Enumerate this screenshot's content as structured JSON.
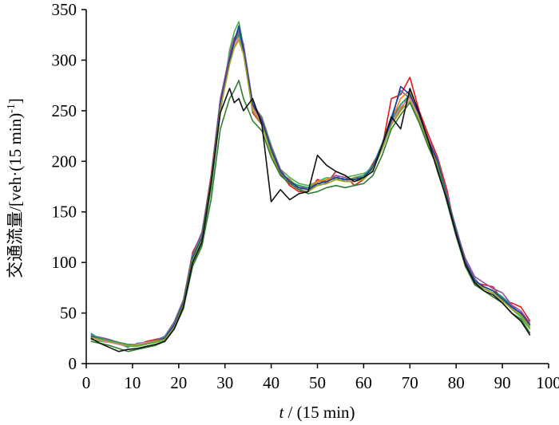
{
  "chart_data": {
    "type": "line",
    "title": "",
    "xlabel_var": "t",
    "xlabel_unit": " / (15 min)",
    "ylabel_main": "交通流量/[veh·(15 min)",
    "ylabel_sup": "-1",
    "ylabel_close": "]",
    "xlim": [
      0,
      100
    ],
    "ylim": [
      0,
      350
    ],
    "x_ticks": [
      0,
      10,
      20,
      30,
      40,
      50,
      60,
      70,
      80,
      90,
      100
    ],
    "y_ticks": [
      0,
      50,
      100,
      150,
      200,
      250,
      300,
      350
    ],
    "x_tick_labels": [
      "0",
      "10",
      "20",
      "30",
      "40",
      "50",
      "60",
      "70",
      "80",
      "90",
      "100"
    ],
    "y_tick_labels": [
      "0",
      "50",
      "100",
      "150",
      "200",
      "250",
      "300",
      "350"
    ],
    "grid": false,
    "legend": "none",
    "base_profile": {
      "x": [
        1,
        3,
        5,
        7,
        9,
        11,
        13,
        15,
        17,
        19,
        21,
        23,
        25,
        27,
        29,
        31,
        32,
        33,
        34,
        36,
        38,
        40,
        42,
        44,
        46,
        48,
        50,
        52,
        54,
        56,
        58,
        60,
        62,
        64,
        66,
        68,
        70,
        72,
        74,
        76,
        78,
        80,
        82,
        84,
        86,
        88,
        90,
        92,
        94,
        96
      ],
      "y": [
        27,
        24,
        22,
        20,
        18,
        18,
        20,
        22,
        25,
        38,
        60,
        105,
        125,
        180,
        255,
        300,
        318,
        325,
        310,
        255,
        240,
        212,
        190,
        180,
        175,
        173,
        178,
        180,
        184,
        182,
        182,
        185,
        195,
        215,
        240,
        255,
        265,
        245,
        220,
        200,
        165,
        130,
        100,
        82,
        76,
        72,
        65,
        56,
        50,
        38
      ]
    },
    "series": [
      {
        "color": "#e41a1c",
        "values": [
          25,
          25,
          23,
          21,
          18,
          18,
          22,
          24,
          26,
          40,
          62,
          110,
          128,
          186,
          260,
          306,
          322,
          328,
          312,
          248,
          236,
          214,
          188,
          176,
          170,
          170,
          182,
          178,
          190,
          186,
          176,
          182,
          198,
          214,
          262,
          266,
          283,
          250,
          226,
          204,
          172,
          128,
          96,
          80,
          78,
          76,
          62,
          60,
          56,
          42
        ]
      },
      {
        "color": "#377eb8",
        "values": [
          30,
          24,
          22,
          20,
          16,
          20,
          21,
          23,
          24,
          36,
          58,
          102,
          124,
          176,
          258,
          302,
          320,
          330,
          308,
          252,
          238,
          208,
          186,
          182,
          172,
          174,
          176,
          182,
          186,
          180,
          184,
          186,
          196,
          218,
          244,
          270,
          262,
          244,
          222,
          198,
          166,
          134,
          102,
          84,
          74,
          70,
          66,
          58,
          48,
          36
        ]
      },
      {
        "color": "#4daf4a",
        "values": [
          24,
          22,
          21,
          19,
          17,
          17,
          19,
          21,
          23,
          34,
          56,
          98,
          118,
          172,
          248,
          310,
          328,
          338,
          314,
          256,
          244,
          216,
          192,
          184,
          178,
          176,
          180,
          184,
          182,
          184,
          186,
          188,
          192,
          212,
          238,
          250,
          268,
          242,
          218,
          196,
          160,
          126,
          98,
          80,
          74,
          70,
          64,
          54,
          46,
          34
        ]
      },
      {
        "color": "#984ea3",
        "values": [
          28,
          26,
          24,
          21,
          19,
          19,
          21,
          23,
          27,
          41,
          63,
          108,
          130,
          184,
          262,
          304,
          322,
          326,
          316,
          258,
          242,
          214,
          192,
          178,
          176,
          172,
          178,
          180,
          186,
          184,
          180,
          184,
          196,
          216,
          242,
          256,
          266,
          246,
          222,
          202,
          168,
          132,
          104,
          86,
          80,
          74,
          70,
          58,
          52,
          40
        ]
      },
      {
        "color": "#ff7f00",
        "values": [
          26,
          24,
          22,
          20,
          18,
          18,
          20,
          22,
          25,
          39,
          61,
          104,
          124,
          180,
          252,
          296,
          314,
          320,
          306,
          254,
          240,
          212,
          190,
          180,
          176,
          174,
          180,
          182,
          184,
          182,
          182,
          186,
          194,
          214,
          240,
          262,
          270,
          248,
          220,
          200,
          164,
          130,
          100,
          82,
          76,
          72,
          64,
          56,
          50,
          38
        ]
      },
      {
        "color": "#a6761d",
        "values": [
          27,
          25,
          23,
          21,
          19,
          18,
          20,
          23,
          25,
          38,
          60,
          106,
          126,
          182,
          256,
          300,
          316,
          324,
          310,
          256,
          238,
          210,
          188,
          182,
          174,
          172,
          176,
          178,
          182,
          180,
          184,
          184,
          194,
          216,
          238,
          252,
          264,
          244,
          220,
          198,
          166,
          130,
          100,
          82,
          76,
          72,
          66,
          56,
          50,
          38
        ]
      },
      {
        "color": "#f781bf",
        "values": [
          26,
          23,
          21,
          19,
          18,
          19,
          21,
          22,
          24,
          37,
          59,
          104,
          126,
          178,
          254,
          298,
          316,
          322,
          308,
          252,
          238,
          212,
          190,
          180,
          174,
          172,
          178,
          180,
          184,
          182,
          180,
          184,
          194,
          214,
          238,
          254,
          262,
          244,
          220,
          200,
          164,
          128,
          100,
          82,
          76,
          72,
          64,
          56,
          48,
          36
        ]
      },
      {
        "color": "#1b9e77",
        "values": [
          29,
          25,
          23,
          21,
          19,
          18,
          20,
          22,
          26,
          39,
          61,
          106,
          126,
          180,
          256,
          300,
          318,
          326,
          310,
          256,
          240,
          212,
          190,
          180,
          176,
          174,
          178,
          180,
          184,
          182,
          182,
          186,
          196,
          216,
          240,
          256,
          266,
          246,
          220,
          200,
          166,
          130,
          100,
          82,
          76,
          72,
          66,
          56,
          50,
          38
        ]
      },
      {
        "color": "#1f3b99",
        "values": [
          27,
          24,
          22,
          20,
          18,
          18,
          20,
          22,
          25,
          38,
          60,
          104,
          124,
          180,
          256,
          300,
          318,
          334,
          310,
          256,
          240,
          212,
          190,
          180,
          174,
          172,
          178,
          180,
          184,
          182,
          182,
          184,
          194,
          216,
          240,
          274,
          266,
          246,
          220,
          200,
          164,
          130,
          100,
          82,
          76,
          72,
          64,
          56,
          50,
          38
        ]
      },
      {
        "color": "#9aa51e",
        "values": [
          26,
          24,
          22,
          20,
          18,
          18,
          20,
          22,
          24,
          36,
          58,
          102,
          122,
          178,
          252,
          296,
          312,
          320,
          306,
          250,
          236,
          208,
          186,
          178,
          172,
          170,
          176,
          178,
          182,
          180,
          180,
          182,
          192,
          212,
          236,
          250,
          260,
          240,
          216,
          196,
          162,
          128,
          98,
          80,
          74,
          70,
          62,
          54,
          48,
          36
        ]
      },
      {
        "color": "#2e7d32",
        "values": [
          22,
          20,
          18,
          15,
          12,
          14,
          16,
          18,
          22,
          34,
          54,
          96,
          116,
          162,
          232,
          262,
          270,
          280,
          262,
          240,
          230,
          204,
          186,
          178,
          172,
          168,
          170,
          174,
          176,
          174,
          176,
          178,
          186,
          206,
          232,
          246,
          258,
          238,
          214,
          194,
          160,
          126,
          96,
          78,
          72,
          66,
          60,
          50,
          44,
          30
        ]
      },
      {
        "color": "#111111",
        "values": [
          25,
          20,
          16,
          12,
          14,
          15,
          17,
          19,
          22,
          34,
          56,
          100,
          120,
          178,
          248,
          272,
          258,
          262,
          250,
          262,
          236,
          160,
          172,
          162,
          168,
          170,
          206,
          196,
          190,
          186,
          180,
          184,
          190,
          216,
          244,
          232,
          272,
          248,
          220,
          190,
          162,
          128,
          98,
          80,
          72,
          68,
          60,
          50,
          42,
          28
        ]
      }
    ]
  }
}
